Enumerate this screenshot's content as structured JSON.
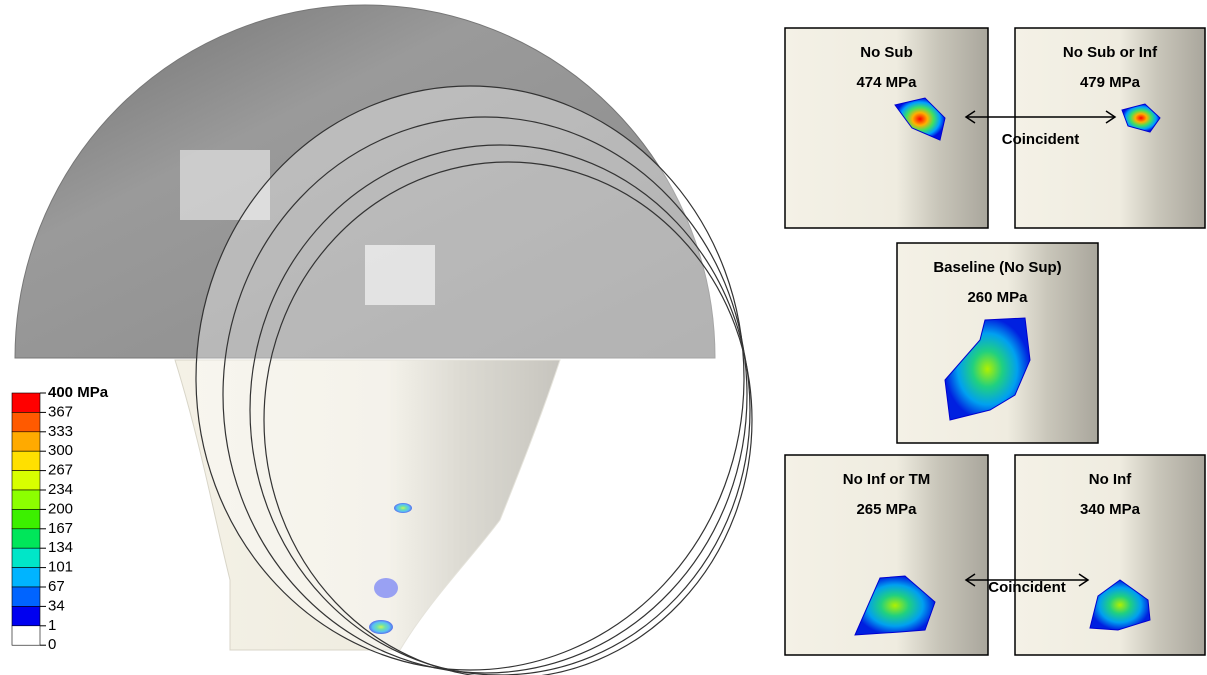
{
  "legend": {
    "labels": [
      "400 MPa",
      "367",
      "333",
      "300",
      "267",
      "234",
      "200",
      "167",
      "134",
      "101",
      "67",
      "34",
      "1",
      "0"
    ],
    "colors": [
      "#ff0000",
      "#ff5a00",
      "#ffaa00",
      "#ffe000",
      "#d8ff00",
      "#8cff00",
      "#3cf000",
      "#00e65a",
      "#00e6c8",
      "#00b4ff",
      "#0064ff",
      "#0000f0",
      "#ffffff"
    ]
  },
  "panels": [
    {
      "title": "No Sub",
      "stress": "474 MPa"
    },
    {
      "title": "No Sub or Inf",
      "stress": "479 MPa"
    },
    {
      "title": "Baseline (No Sup)",
      "stress": "260 MPa"
    },
    {
      "title": "No Inf or TM",
      "stress": "265 MPa"
    },
    {
      "title": "No Inf",
      "stress": "340 MPa"
    }
  ],
  "connectors": [
    "Coincident",
    "Coincident"
  ]
}
